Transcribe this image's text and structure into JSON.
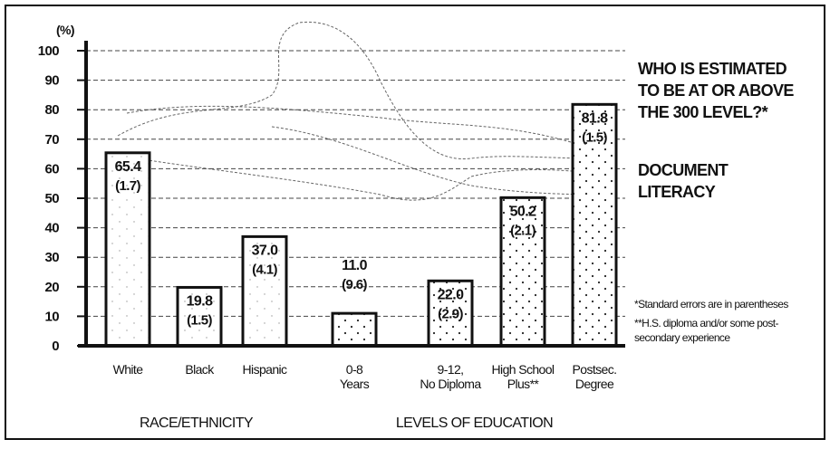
{
  "chart_data": {
    "type": "bar",
    "title": "WHO IS ESTIMATED\nTO BE AT OR ABOVE\nTHE 300 LEVEL?*",
    "subtitle": "DOCUMENT\nLITERACY",
    "y_label": "(%)",
    "categories": [
      "White",
      "Black",
      "Hispanic",
      "0-8\nYears",
      "9-12,\nNo Diploma",
      "High School\nPlus**",
      "Postsec.\nDegree"
    ],
    "groups": [
      {
        "label": "RACE/ETHNICITY",
        "count": 3
      },
      {
        "label": "LEVELS OF EDUCATION",
        "count": 4
      }
    ],
    "values": [
      65.4,
      19.8,
      37.0,
      11.0,
      22.0,
      50.2,
      81.8
    ],
    "value_labels": [
      "65.4",
      "19.8",
      "37.0",
      "11.0",
      "22.0",
      "50.2",
      "81.8"
    ],
    "errors": [
      1.7,
      1.5,
      4.1,
      9.6,
      2.9,
      2.1,
      1.5
    ],
    "error_labels": [
      "(1.7)",
      "(1.5)",
      "(4.1)",
      "(9.6)",
      "(2.9)",
      "(2.1)",
      "(1.5)"
    ],
    "color": "#ffffff",
    "ylim": [
      0,
      100
    ],
    "yticks": [
      0,
      10,
      20,
      30,
      40,
      50,
      60,
      70,
      80,
      90,
      100
    ],
    "grid": true,
    "notes": [
      "*Standard errors are in parentheses",
      "**H.S. diploma and/or some post-\nsecondary experience"
    ]
  }
}
